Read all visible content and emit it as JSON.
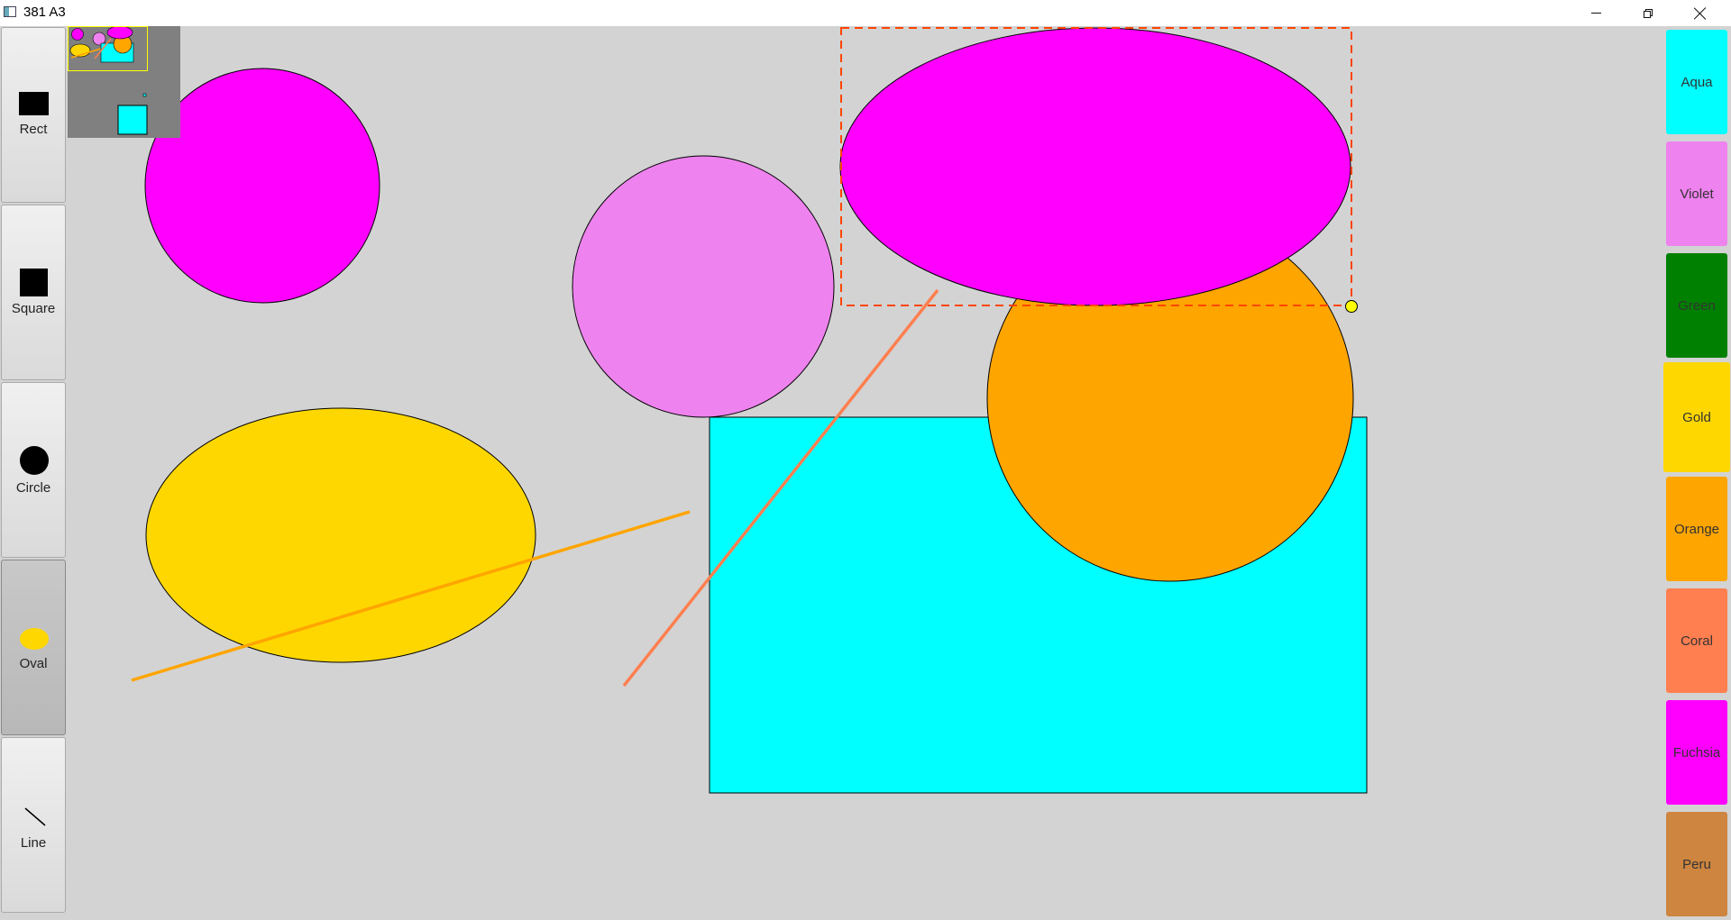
{
  "window": {
    "title": "381 A3",
    "minimize_icon": "minimize-icon",
    "maximize_icon": "restore-icon",
    "close_icon": "close-icon"
  },
  "toolbar": {
    "tools": [
      {
        "id": "rect",
        "label": "Rect",
        "icon": "rect-icon"
      },
      {
        "id": "square",
        "label": "Square",
        "icon": "square-icon"
      },
      {
        "id": "circle",
        "label": "Circle",
        "icon": "circle-icon"
      },
      {
        "id": "oval",
        "label": "Oval",
        "icon": "oval-icon",
        "selected": true
      },
      {
        "id": "line",
        "label": "Line",
        "icon": "line-icon"
      }
    ]
  },
  "palette": {
    "colors": [
      {
        "name": "Aqua",
        "hex": "#00ffff"
      },
      {
        "name": "Violet",
        "hex": "#ee82ee"
      },
      {
        "name": "Green",
        "hex": "#008000"
      },
      {
        "name": "Gold",
        "hex": "#ffd700",
        "selected": true
      },
      {
        "name": "Orange",
        "hex": "#ffa500"
      },
      {
        "name": "Coral",
        "hex": "#ff7f50"
      },
      {
        "name": "Fuchsia",
        "hex": "#ff00ff"
      },
      {
        "name": "Peru",
        "hex": "#cd853f"
      }
    ]
  },
  "canvas": {
    "background": "#d3d3d3",
    "selection_color": "#ff4500",
    "handle_color": "#ffff00"
  }
}
